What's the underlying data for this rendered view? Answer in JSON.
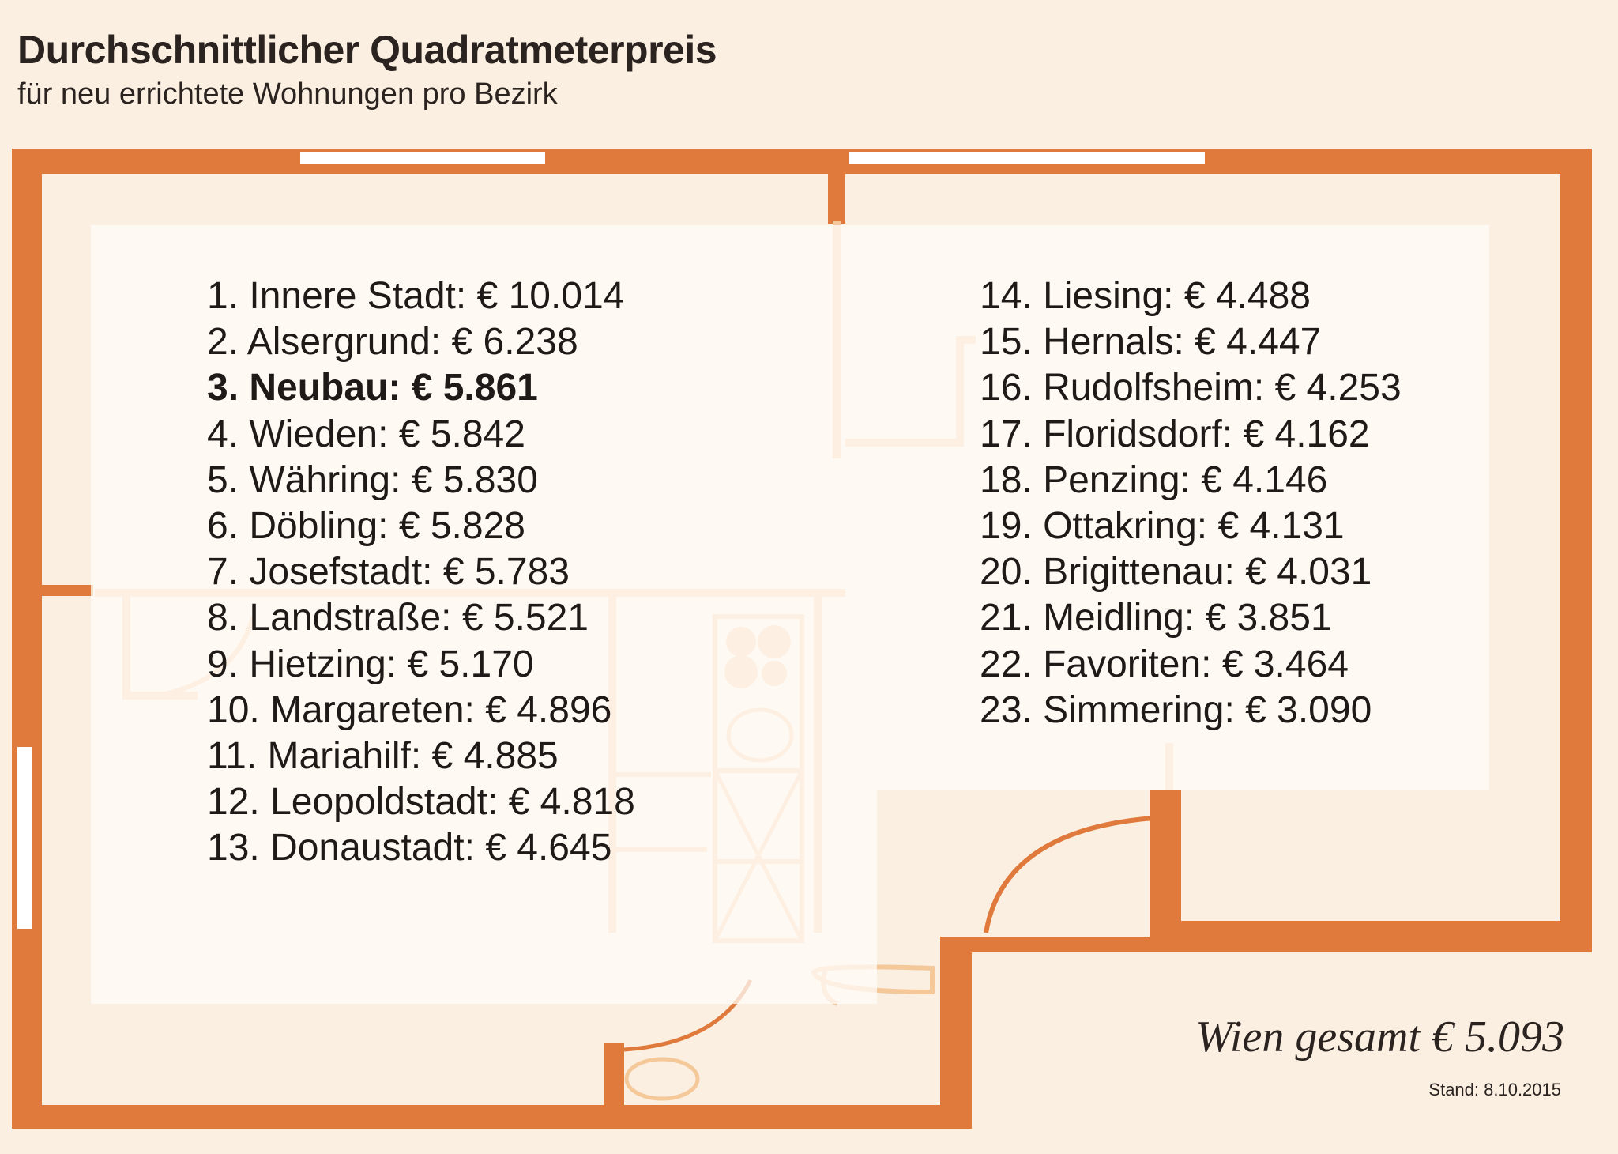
{
  "header": {
    "title": "Durchschnittlicher Quadratmeterpreis",
    "subtitle": "für neu errichtete Wohnungen pro Bezirk"
  },
  "districts_left": [
    {
      "label": "1. Innere Stadt: € 10.014",
      "highlight": false
    },
    {
      "label": "2. Alsergrund: € 6.238",
      "highlight": false
    },
    {
      "label": "3. Neubau: € 5.861",
      "highlight": true
    },
    {
      "label": "4. Wieden: € 5.842",
      "highlight": false
    },
    {
      "label": "5. Währing: € 5.830",
      "highlight": false
    },
    {
      "label": "6. Döbling: € 5.828",
      "highlight": false
    },
    {
      "label": "7. Josefstadt: € 5.783",
      "highlight": false
    },
    {
      "label": "8. Landstraße: € 5.521",
      "highlight": false
    },
    {
      "label": "9. Hietzing: € 5.170",
      "highlight": false
    },
    {
      "label": "10. Margareten: € 4.896",
      "highlight": false
    },
    {
      "label": "11. Mariahilf: € 4.885",
      "highlight": false
    },
    {
      "label": "12. Leopoldstadt: € 4.818",
      "highlight": false
    },
    {
      "label": "13. Donaustadt: € 4.645",
      "highlight": false
    }
  ],
  "districts_right": [
    {
      "label": "14. Liesing: € 4.488",
      "highlight": false
    },
    {
      "label": "15. Hernals: € 4.447",
      "highlight": false
    },
    {
      "label": "16. Rudolfsheim: € 4.253",
      "highlight": false
    },
    {
      "label": "17. Floridsdorf: € 4.162",
      "highlight": false
    },
    {
      "label": "18. Penzing: € 4.146",
      "highlight": false
    },
    {
      "label": "19. Ottakring: € 4.131",
      "highlight": false
    },
    {
      "label": "20. Brigittenau: € 4.031",
      "highlight": false
    },
    {
      "label": "21. Meidling: € 3.851",
      "highlight": false
    },
    {
      "label": "22. Favoriten: € 3.464",
      "highlight": false
    },
    {
      "label": "23. Simmering: € 3.090",
      "highlight": false
    }
  ],
  "footer": {
    "total": "Wien gesamt € 5.093",
    "stand": "Stand: 8.10.2015"
  },
  "colors": {
    "background": "#fbefe1",
    "wall": "#e07a3c",
    "wall_light": "#f5c89a",
    "text": "#2a2320"
  }
}
